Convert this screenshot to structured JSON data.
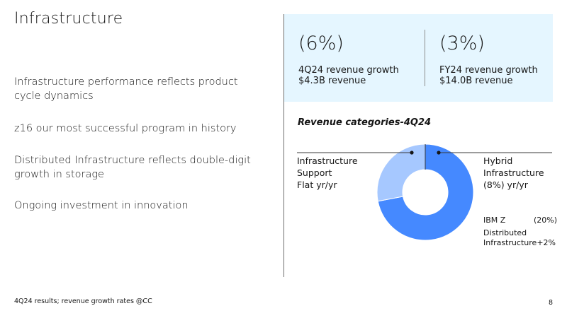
{
  "slide": {
    "title": "Infrastructure",
    "bullets": [
      "Infrastructure performance reflects product cycle dynamics",
      "z16 our most successful program in history",
      "Distributed Infrastructure reflects double-digit growth in storage",
      "Ongoing investment in innovation"
    ],
    "footnote": "4Q24 results; revenue growth rates @CC",
    "page_number": "8"
  },
  "kpis": [
    {
      "value": "(6%)",
      "line1": "4Q24 revenue growth",
      "line2": "$4.3B revenue"
    },
    {
      "value": "(3%)",
      "line1": "FY24 revenue growth",
      "line2": "$14.0B revenue"
    }
  ],
  "colors": {
    "panel_bg": "#e5f6ff",
    "hybrid": "#4589ff",
    "support": "#a6c8ff",
    "text": "#161616"
  },
  "chart_data": {
    "type": "pie",
    "title": "Revenue categories-4Q24",
    "slices": [
      {
        "name": "Hybrid Infrastructure",
        "share": 0.72,
        "label_lines": [
          "Hybrid",
          "Infrastructure",
          "(8%) yr/yr"
        ]
      },
      {
        "name": "Infrastructure Support",
        "share": 0.28,
        "label_lines": [
          "Infrastructure",
          "Support",
          "Flat yr/yr"
        ]
      }
    ],
    "sub_items": [
      {
        "name": "IBM Z",
        "value": "(20%)"
      },
      {
        "name": "Distributed Infrastructure",
        "value": "+2%"
      }
    ]
  }
}
